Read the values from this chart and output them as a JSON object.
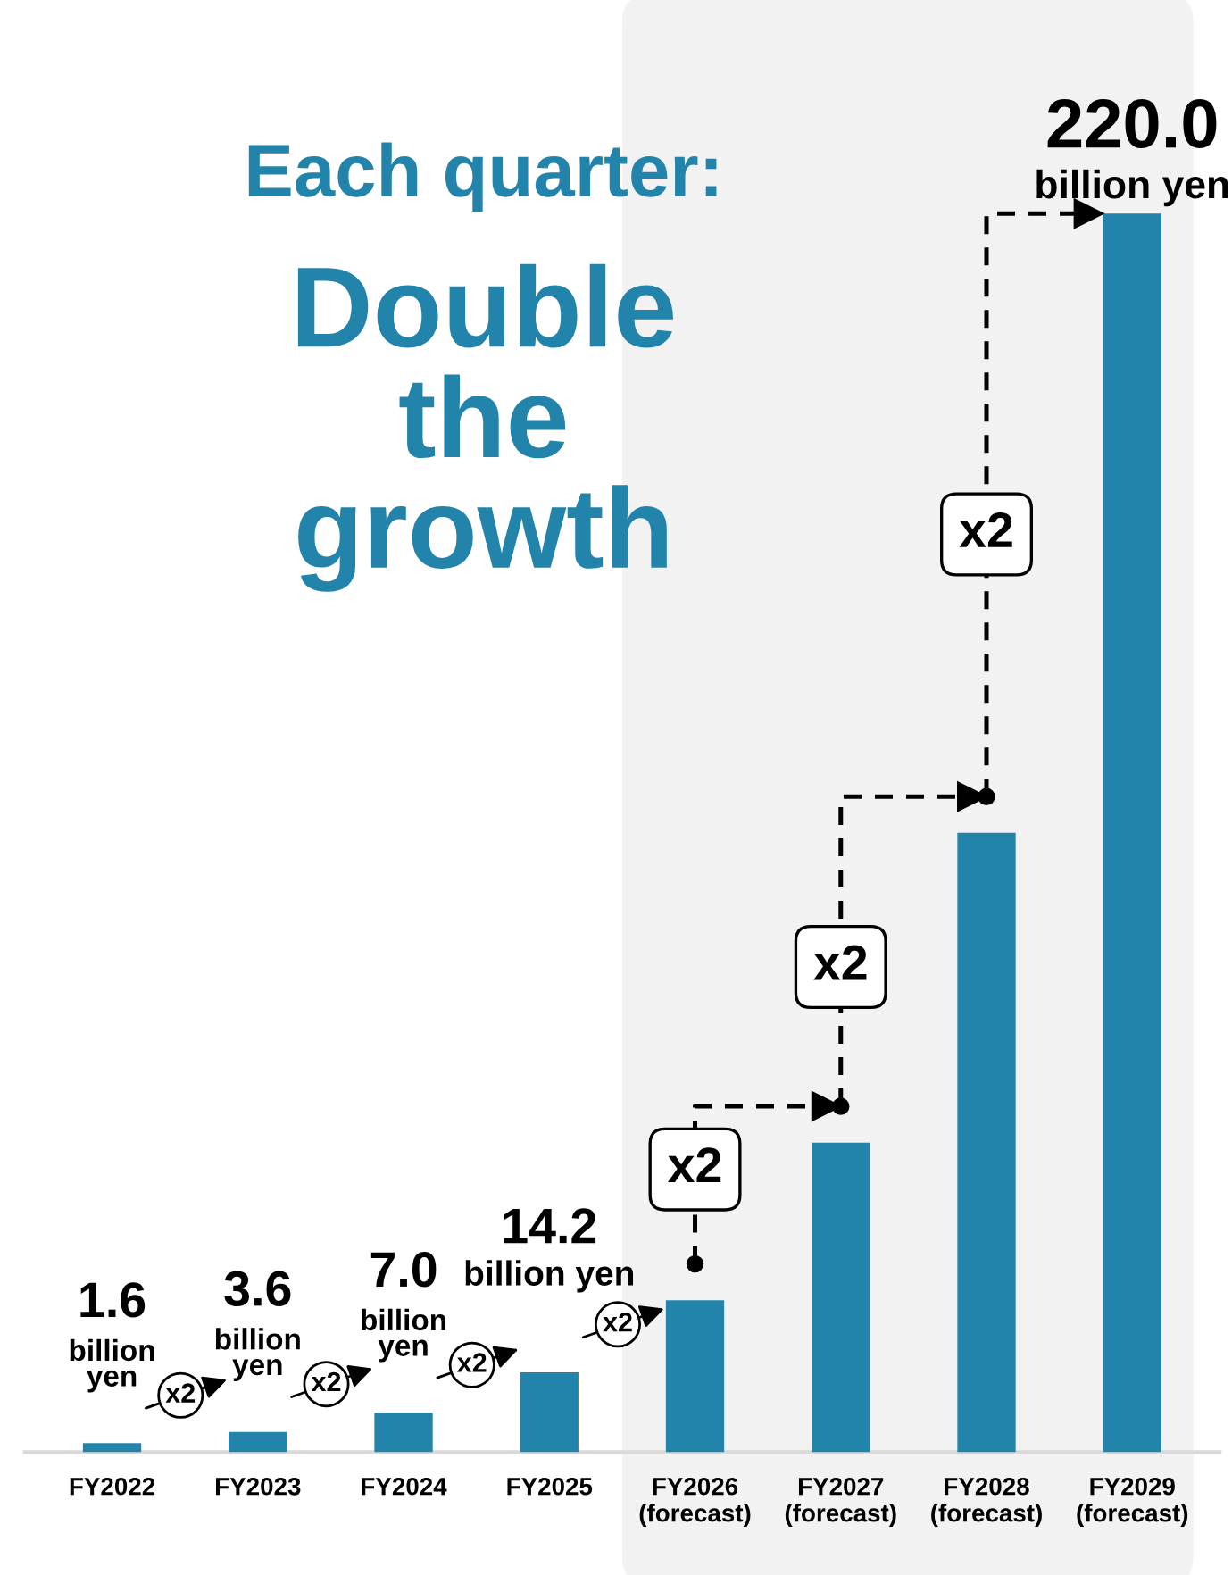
{
  "chart_data": {
    "type": "bar",
    "title": "Each quarter:",
    "subtitle": "Double\nthe\ngrowth",
    "categories": [
      "FY2022",
      "FY2023",
      "FY2024",
      "FY2025",
      "FY2026\n(forecast)",
      "FY2027\n(forecast)",
      "FY2028\n(forecast)",
      "FY2029\n(forecast)"
    ],
    "values": [
      1.6,
      3.6,
      7.0,
      14.2,
      27,
      55,
      110,
      220.0
    ],
    "color": "#2283ab",
    "value_labels": [
      "1.6",
      "3.6",
      "7.0",
      "14.2",
      null,
      null,
      null,
      "220.0"
    ],
    "annotations": [
      "x2",
      "x2",
      "x2",
      "x2",
      "x2",
      "x2",
      "x2",
      {
        "text": "billion\nyen",
        "x": "FY2022",
        "y": 1.6
      },
      {
        "text": "billion\nyen",
        "x": "FY2023",
        "y": 3.6
      },
      {
        "text": "billion\nyen",
        "x": "FY2024",
        "y": 7.0
      },
      {
        "text": "billion yen",
        "x": "FY2025",
        "y": 14.2
      },
      {
        "text": "billion yen",
        "x": "FY2029\n(forecast)",
        "y": 220.0
      }
    ],
    "bands": [
      {
        "axis": "x",
        "from": "FY2026\n(forecast)",
        "to": "FY2029\n(forecast)",
        "color": "#f2f2f2"
      }
    ],
    "grid": false,
    "legend": false
  }
}
